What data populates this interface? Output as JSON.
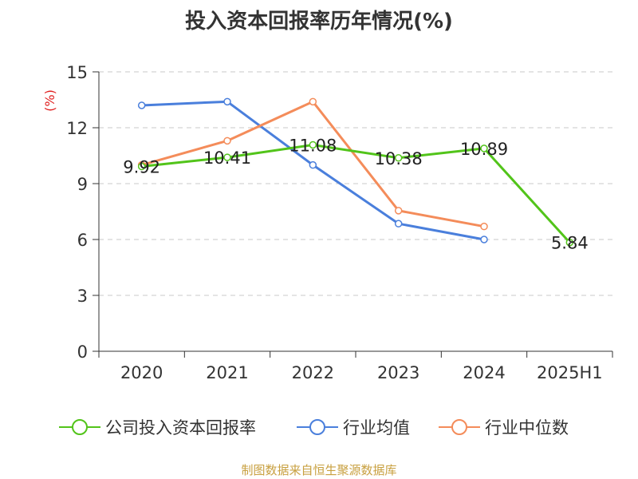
{
  "chart_data": {
    "type": "line",
    "title": "投入资本回报率历年情况(%)",
    "ylabel": "(%)",
    "categories": [
      "2020",
      "2021",
      "2022",
      "2023",
      "2024",
      "2025H1"
    ],
    "ylim": [
      0,
      15
    ],
    "yticks": [
      0,
      3,
      6,
      9,
      12,
      15
    ],
    "grid": true,
    "legend_position": "bottom",
    "series": [
      {
        "name": "公司投入资本回报率",
        "color": "#52c41a",
        "values": [
          9.92,
          10.41,
          11.08,
          10.38,
          10.89,
          5.84
        ],
        "labels": [
          "9.92",
          "10.41",
          "11.08",
          "10.38",
          "10.89",
          "5.84"
        ]
      },
      {
        "name": "行业均值",
        "color": "#4a7fdc",
        "values": [
          13.2,
          13.4,
          10.0,
          6.85,
          6.0,
          null
        ]
      },
      {
        "name": "行业中位数",
        "color": "#f48c5a",
        "values": [
          10.0,
          11.3,
          13.4,
          7.55,
          6.7,
          null
        ]
      }
    ]
  },
  "source": "制图数据来自恒生聚源数据库"
}
